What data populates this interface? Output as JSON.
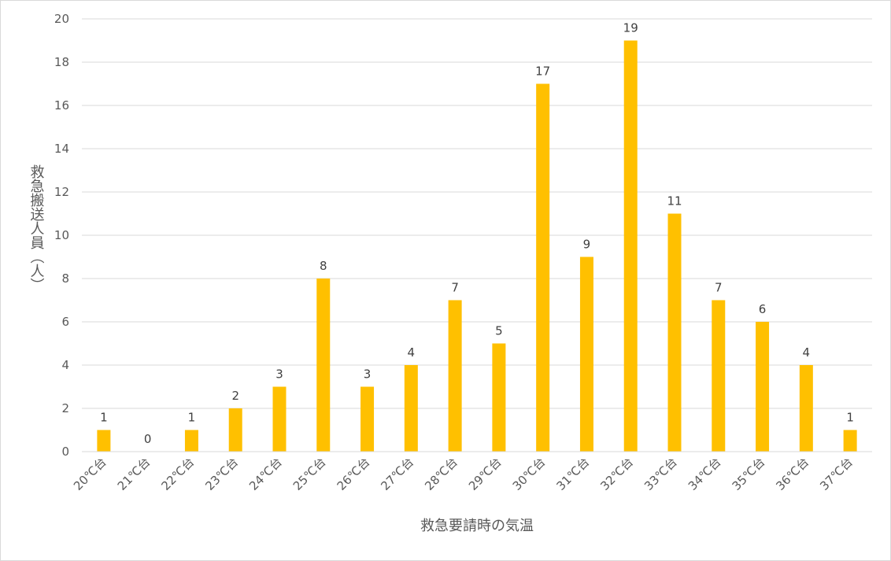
{
  "chart_data": {
    "type": "bar",
    "title": "",
    "xlabel": "救急要請時の気温",
    "ylabel": "救急搬送人員（人）",
    "ylim": [
      0,
      20
    ],
    "yticks": [
      0,
      2,
      4,
      6,
      8,
      10,
      12,
      14,
      16,
      18,
      20
    ],
    "grid": true,
    "legend": "none",
    "bar_color": "#ffc000",
    "categories": [
      "20℃台",
      "21℃台",
      "22℃台",
      "23℃台",
      "24℃台",
      "25℃台",
      "26℃台",
      "27℃台",
      "28℃台",
      "29℃台",
      "30℃台",
      "31℃台",
      "32℃台",
      "33℃台",
      "34℃台",
      "35℃台",
      "36℃台",
      "37℃台"
    ],
    "values": [
      1,
      0,
      1,
      2,
      3,
      8,
      3,
      4,
      7,
      5,
      17,
      9,
      19,
      11,
      7,
      6,
      4,
      1
    ],
    "data_labels": [
      "1",
      "0",
      "1",
      "2",
      "3",
      "8",
      "3",
      "4",
      "7",
      "5",
      "17",
      "9",
      "19",
      "11",
      "7",
      "6",
      "4",
      "1"
    ]
  }
}
